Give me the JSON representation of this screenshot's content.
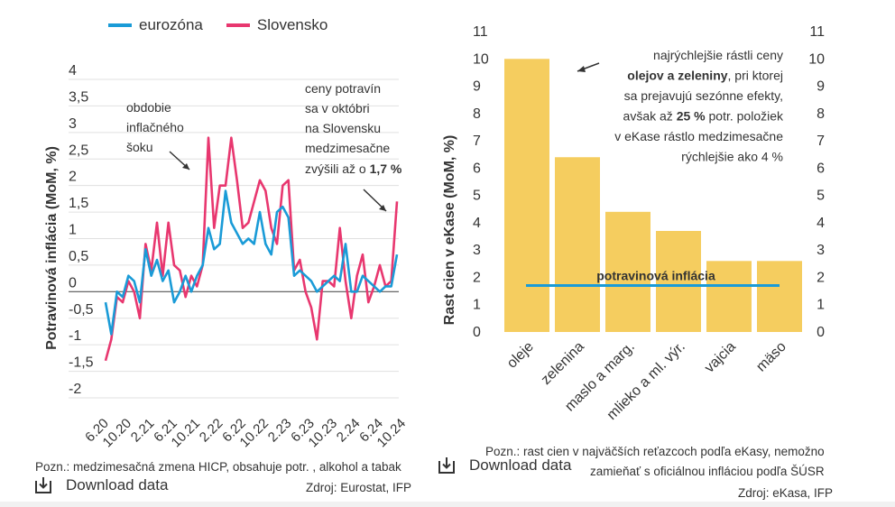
{
  "colors": {
    "eurozone": "#1a9bd7",
    "slovakia": "#e8376f",
    "bar": "#f5cd5f",
    "inflation_line": "#1a9bd7",
    "grid": "#e0e0e0",
    "zero": "#555555"
  },
  "left_chart": {
    "legend": {
      "eurozone": "eurozóna",
      "slovakia": "Slovensko"
    },
    "annotation_shock": [
      "obdobie",
      "inflačného",
      "šoku"
    ],
    "annotation_oct": [
      "ceny potravín",
      "sa v októbri",
      "na Slovensku",
      "medzimesačne"
    ],
    "annotation_oct_last_prefix": "zvýšili až o ",
    "annotation_oct_last_bold": "1,7 %",
    "note": "Pozn.: medzimesačná zmena HICP, obsahuje potr. , alkohol a tabak",
    "source": "Zdroj: Eurostat, IFP",
    "download_label": "Download data"
  },
  "right_chart": {
    "annotation_lines": [
      [
        {
          "t": "najrýchlejšie rástli ceny",
          "b": false
        }
      ],
      [
        {
          "t": "olejov a zeleniny",
          "b": true
        },
        {
          "t": ", pri ktorej",
          "b": false
        }
      ],
      [
        {
          "t": "sa prejavujú sezónne efekty,",
          "b": false
        }
      ],
      [
        {
          "t": "avšak až ",
          "b": false
        },
        {
          "t": "25 %",
          "b": true
        },
        {
          "t": " potr. položiek",
          "b": false
        }
      ],
      [
        {
          "t": "v eKase rástlo medzimesačne",
          "b": false
        }
      ],
      [
        {
          "t": "rýchlejšie ako 4 %",
          "b": false
        }
      ]
    ],
    "note_line1": "Pozn.: rast cien v najväčších reťazcoch podľa eKasy, nemožno",
    "note_line2": "zamieňať s oficiálnou infláciou podľa ŠÚSR",
    "source": "Zdroj: eKasa, IFP",
    "download_label": "Download data"
  },
  "chart_data": [
    {
      "type": "line",
      "title": "",
      "xlabel": "",
      "ylabel": "Potravinová inflácia (MoM, %)",
      "ylim": [
        -2,
        4
      ],
      "yticks": [
        -2,
        -1.5,
        -1,
        -0.5,
        0,
        0.5,
        1,
        1.5,
        2,
        2.5,
        3,
        3.5,
        4
      ],
      "ytick_labels": [
        "-2",
        "-1,5",
        "-1",
        "-0,5",
        "0",
        "0,5",
        "1",
        "1,5",
        "2",
        "2,5",
        "3",
        "3,5",
        "4"
      ],
      "x_start": "6.20",
      "x_tick_labels": [
        "6.20",
        "10.20",
        "2.21",
        "6.21",
        "10.21",
        "2.22",
        "6.22",
        "10.22",
        "2.23",
        "6.23",
        "10.23",
        "2.24",
        "6.24",
        "10.24"
      ],
      "series": [
        {
          "name": "eurozóna",
          "values": [
            -0.2,
            -0.8,
            0.0,
            -0.1,
            0.3,
            0.2,
            -0.2,
            0.8,
            0.3,
            0.6,
            0.2,
            0.4,
            -0.2,
            0.0,
            0.3,
            0.0,
            0.3,
            0.5,
            1.2,
            0.8,
            0.9,
            1.9,
            1.3,
            1.1,
            0.9,
            1.0,
            0.9,
            1.5,
            0.9,
            0.7,
            1.5,
            1.6,
            1.4,
            0.3,
            0.4,
            0.3,
            0.2,
            0.0,
            0.1,
            0.2,
            0.3,
            0.2,
            0.9,
            0.0,
            0.0,
            0.3,
            0.2,
            0.1,
            0.0,
            0.1,
            0.1,
            0.7
          ]
        },
        {
          "name": "Slovensko",
          "values": [
            -1.3,
            -0.9,
            -0.1,
            -0.2,
            0.2,
            0.0,
            -0.5,
            0.9,
            0.4,
            1.3,
            0.3,
            1.3,
            0.5,
            0.4,
            -0.1,
            0.3,
            0.1,
            0.5,
            2.9,
            1.2,
            2.0,
            2.0,
            2.9,
            2.1,
            1.2,
            1.3,
            1.7,
            2.1,
            1.9,
            1.2,
            0.9,
            2.0,
            2.1,
            0.4,
            0.6,
            0.0,
            -0.3,
            -0.9,
            0.2,
            0.2,
            0.1,
            1.2,
            0.2,
            -0.5,
            0.3,
            0.7,
            -0.2,
            0.1,
            0.5,
            0.1,
            0.2,
            1.7
          ]
        }
      ]
    },
    {
      "type": "bar",
      "title": "",
      "xlabel": "",
      "ylabel": "Rast cien v eKase (MoM, %)",
      "ylim": [
        0,
        11
      ],
      "yticks": [
        0,
        1,
        2,
        3,
        4,
        5,
        6,
        7,
        8,
        9,
        10,
        11
      ],
      "categories": [
        "oleje",
        "zelenina",
        "maslo a marg.",
        "mlieko a ml. výr.",
        "vajcia",
        "mäso"
      ],
      "values": [
        10.0,
        6.4,
        4.4,
        3.7,
        2.6,
        2.6
      ],
      "reference_line": {
        "label": "potravinová inflácia",
        "value": 1.7
      }
    }
  ]
}
